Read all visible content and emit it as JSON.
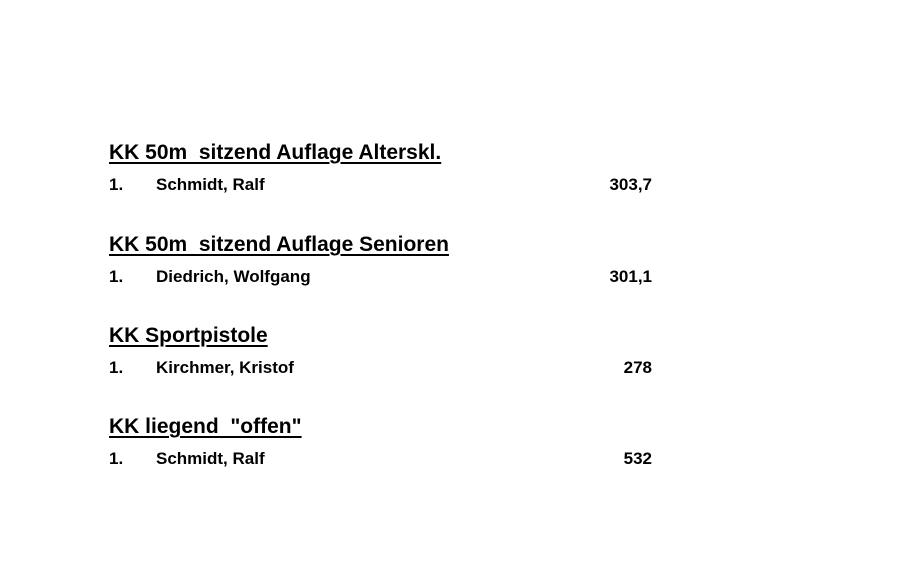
{
  "sections": [
    {
      "title": "KK 50m  sitzend Auflage Alterskl.",
      "entries": [
        {
          "rank": "1.",
          "name": "Schmidt, Ralf",
          "score": "303,7"
        }
      ]
    },
    {
      "title": "KK 50m  sitzend Auflage Senioren",
      "entries": [
        {
          "rank": "1.",
          "name": "Diedrich, Wolfgang",
          "score": "301,1"
        }
      ]
    },
    {
      "title": "KK Sportpistole",
      "entries": [
        {
          "rank": "1.",
          "name": "Kirchmer, Kristof",
          "score": "278"
        }
      ]
    },
    {
      "title": "KK liegend  \"offen\"",
      "entries": [
        {
          "rank": "1.",
          "name": "Schmidt, Ralf",
          "score": "532"
        }
      ]
    }
  ]
}
